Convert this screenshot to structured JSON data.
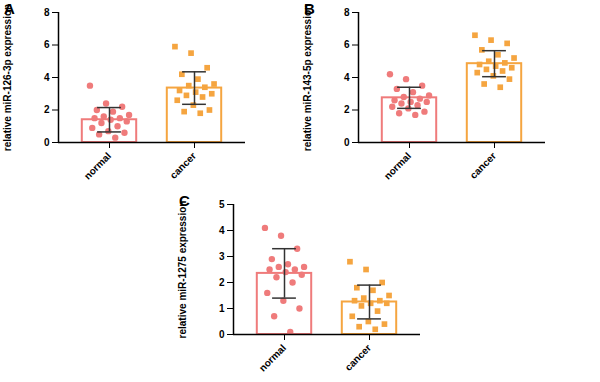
{
  "chart_data": [
    {
      "type": "bar",
      "title": "A",
      "ylabel": "relative miR-126-3p expression",
      "categories": [
        "normal",
        "cancer"
      ],
      "values": [
        1.4,
        3.35
      ],
      "errors": [
        0.75,
        1.0
      ],
      "colors": [
        "#ef7b7b",
        "#f5a540"
      ],
      "ylim": [
        0,
        8
      ],
      "yticks": [
        0,
        2,
        4,
        6,
        8
      ],
      "points": [
        {
          "category": "normal",
          "marker": "circle",
          "values": [
            3.5,
            2.4,
            2.2,
            2.0,
            1.9,
            1.7,
            1.6,
            1.5,
            1.5,
            1.4,
            1.3,
            1.2,
            1.0,
            0.9,
            0.7,
            0.6,
            0.5,
            0.3
          ]
        },
        {
          "category": "cancer",
          "marker": "square",
          "values": [
            5.9,
            5.5,
            4.6,
            4.2,
            3.9,
            3.6,
            3.5,
            3.4,
            3.2,
            3.1,
            3.0,
            2.9,
            2.8,
            2.6,
            2.3,
            2.0,
            1.9,
            1.8
          ]
        }
      ]
    },
    {
      "type": "bar",
      "title": "B",
      "ylabel": "relative miR-143-5p expression",
      "categories": [
        "normal",
        "cancer"
      ],
      "values": [
        2.75,
        4.85
      ],
      "errors": [
        0.65,
        0.8
      ],
      "colors": [
        "#ef7b7b",
        "#f5a540"
      ],
      "ylim": [
        0,
        8
      ],
      "yticks": [
        0,
        2,
        4,
        6,
        8
      ],
      "points": [
        {
          "category": "normal",
          "marker": "circle",
          "values": [
            4.2,
            3.9,
            3.5,
            3.3,
            3.1,
            2.9,
            2.8,
            2.7,
            2.6,
            2.5,
            2.5,
            2.4,
            2.3,
            2.2,
            2.1,
            1.9,
            1.8,
            1.7
          ]
        },
        {
          "category": "cancer",
          "marker": "square",
          "values": [
            6.6,
            6.3,
            6.1,
            5.7,
            5.4,
            5.2,
            5.0,
            4.9,
            4.8,
            4.7,
            4.6,
            4.5,
            4.4,
            4.3,
            4.1,
            3.9,
            3.6,
            3.4
          ]
        }
      ]
    },
    {
      "type": "bar",
      "title": "C",
      "ylabel": "relative miR-1275 expression",
      "categories": [
        "normal",
        "cancer"
      ],
      "values": [
        2.35,
        1.25
      ],
      "errors": [
        0.95,
        0.65
      ],
      "colors": [
        "#ef7b7b",
        "#f5a540"
      ],
      "ylim": [
        0,
        5
      ],
      "yticks": [
        0,
        1,
        2,
        3,
        4,
        5
      ],
      "points": [
        {
          "category": "normal",
          "marker": "circle",
          "values": [
            4.1,
            3.8,
            3.3,
            2.9,
            2.7,
            2.6,
            2.6,
            2.5,
            2.5,
            2.4,
            2.3,
            2.2,
            2.0,
            1.6,
            1.3,
            1.0,
            0.7,
            0.1
          ]
        },
        {
          "category": "cancer",
          "marker": "square",
          "values": [
            2.8,
            2.5,
            2.0,
            1.8,
            1.7,
            1.5,
            1.4,
            1.3,
            1.3,
            1.2,
            1.2,
            1.1,
            0.9,
            0.7,
            0.5,
            0.4,
            0.3,
            0.2
          ]
        }
      ]
    }
  ]
}
